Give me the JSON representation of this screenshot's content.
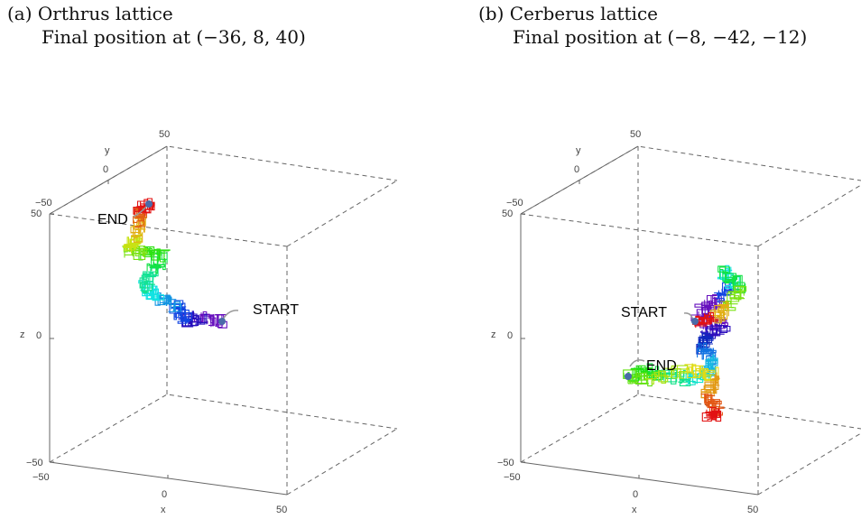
{
  "panels": [
    {
      "id": "a",
      "caption_line1": "(a) Orthrus lattice",
      "caption_line2": "Final position at (−36, 8, 40)",
      "ticks": {
        "y_top": "50",
        "y_mid": "0",
        "y_low": "−50",
        "z_top": "50",
        "z_mid": "0",
        "z_bot": "−50",
        "x_left": "−50",
        "x_mid": "0",
        "x_right": "50"
      },
      "axis_labels": {
        "x": "x",
        "y": "y",
        "z": "z"
      },
      "start_label": "START",
      "end_label": "END",
      "point_color": "#4a6ba8"
    },
    {
      "id": "b",
      "caption_line1": "(b) Cerberus lattice",
      "caption_line2": "Final position at (−8, −42, −12)",
      "ticks": {
        "y_top": "50",
        "y_mid": "0",
        "y_low": "−50",
        "z_top": "50",
        "z_mid": "0",
        "z_bot": "−50",
        "x_left": "−50",
        "x_mid": "0",
        "x_right": "50"
      },
      "axis_labels": {
        "x": "x",
        "y": "y",
        "z": "z"
      },
      "start_label": "START",
      "end_label": "END",
      "point_color": "#4a6ba8"
    }
  ]
}
